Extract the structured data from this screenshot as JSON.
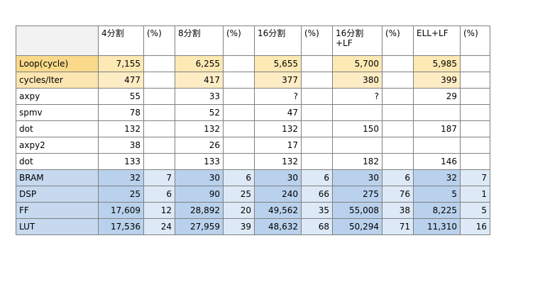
{
  "header": {
    "corner": "",
    "cols": [
      "4分割",
      "(%)",
      "8分割",
      "(%)",
      "16分割",
      "(%)",
      "16分割+LF",
      "(%)",
      "ELL+LF",
      "(%)"
    ]
  },
  "rows": [
    {
      "label": "Loop(cycle)",
      "style": "yellow",
      "cells": [
        "7,155",
        "",
        "6,255",
        "",
        "5,655",
        "",
        "5,700",
        "",
        "5,985",
        ""
      ]
    },
    {
      "label": "cycles/Iter",
      "style": "yellow2",
      "cells": [
        "477",
        "",
        "417",
        "",
        "377",
        "",
        "380",
        "",
        "399",
        ""
      ]
    },
    {
      "label": "axpy",
      "style": "plain",
      "cells": [
        "55",
        "",
        "33",
        "",
        "?",
        "",
        "?",
        "",
        "29",
        ""
      ]
    },
    {
      "label": "spmv",
      "style": "plain",
      "cells": [
        "78",
        "",
        "52",
        "",
        "47",
        "",
        "",
        "",
        "",
        ""
      ]
    },
    {
      "label": "dot",
      "style": "plain",
      "cells": [
        "132",
        "",
        "132",
        "",
        "132",
        "",
        "150",
        "",
        "187",
        ""
      ]
    },
    {
      "label": "axpy2",
      "style": "plain",
      "cells": [
        "38",
        "",
        "26",
        "",
        "17",
        "",
        "",
        "",
        "",
        ""
      ]
    },
    {
      "label": "dot",
      "style": "plain",
      "cells": [
        "133",
        "",
        "133",
        "",
        "132",
        "",
        "182",
        "",
        "146",
        ""
      ]
    },
    {
      "label": "BRAM",
      "style": "blue",
      "cells": [
        "32",
        "7",
        "30",
        "6",
        "30",
        "6",
        "30",
        "6",
        "32",
        "7"
      ]
    },
    {
      "label": "DSP",
      "style": "blue",
      "cells": [
        "25",
        "6",
        "90",
        "25",
        "240",
        "66",
        "275",
        "76",
        "5",
        "1"
      ]
    },
    {
      "label": "FF",
      "style": "blue",
      "cells": [
        "17,609",
        "12",
        "28,892",
        "20",
        "49,562",
        "35",
        "55,008",
        "38",
        "8,225",
        "5"
      ]
    },
    {
      "label": "LUT",
      "style": "blue",
      "cells": [
        "17,536",
        "24",
        "27,959",
        "39",
        "48,632",
        "68",
        "50,294",
        "71",
        "11,310",
        "16"
      ]
    }
  ]
}
